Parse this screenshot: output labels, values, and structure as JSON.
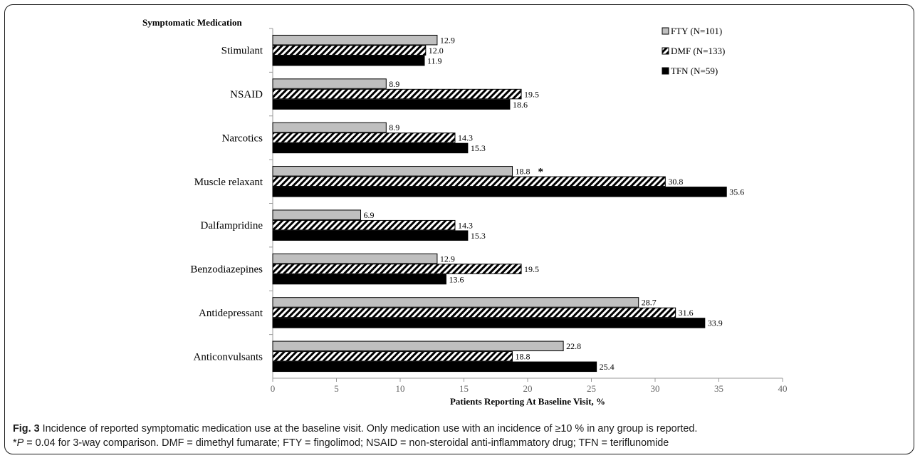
{
  "chart_data": {
    "type": "bar",
    "orientation": "horizontal",
    "title": "Symptomatic Medication",
    "xlabel": "Patients Reporting At Baseline Visit, %",
    "ylabel": "",
    "xlim": [
      0,
      40
    ],
    "xticks": [
      "0",
      "5",
      "10",
      "15",
      "20",
      "25",
      "30",
      "35",
      "40"
    ],
    "grid": false,
    "legend_position": "top-right",
    "categories": [
      "Stimulant",
      "NSAID",
      "Narcotics",
      "Muscle relaxant",
      "Dalfampridine",
      "Benzodiazepines",
      "Antidepressant",
      "Anticonvulsants"
    ],
    "series": [
      {
        "name": "FTY (N=101)",
        "color": "#bfbfbf",
        "pattern": "solid-gray",
        "values": [
          12.9,
          8.9,
          8.9,
          18.8,
          6.9,
          12.9,
          28.7,
          22.8
        ],
        "labels": [
          "12.9",
          "8.9",
          "8.9",
          "18.8",
          "6.9",
          "12.9",
          "28.7",
          "22.8"
        ]
      },
      {
        "name": "DMF (N=133)",
        "color": "#000000",
        "pattern": "diagonal-hatch",
        "values": [
          12.0,
          19.5,
          14.3,
          30.8,
          14.3,
          19.5,
          31.6,
          18.8
        ],
        "labels": [
          "12.0",
          "19.5",
          "14.3",
          "30.8",
          "14.3",
          "19.5",
          "31.6",
          "18.8"
        ]
      },
      {
        "name": "TFN (N=59)",
        "color": "#000000",
        "pattern": "solid-black",
        "values": [
          11.9,
          18.6,
          15.3,
          35.6,
          15.3,
          13.6,
          33.9,
          25.4
        ],
        "labels": [
          "11.9",
          "18.6",
          "15.3",
          "35.6",
          "15.3",
          "13.6",
          "33.9",
          "25.4"
        ]
      }
    ],
    "annotations": [
      {
        "text": "*",
        "category": "Muscle relaxant",
        "series": "FTY (N=101)"
      }
    ]
  },
  "caption": {
    "fig_label": "Fig. 3",
    "line1": " Incidence of reported symptomatic medication use at the baseline visit. Only medication use with an incidence of ≥10 % in any group is reported.",
    "line2_star": "*",
    "line2_p": "P",
    "line2_rest": " = 0.04 for 3-way comparison. DMF = dimethyl fumarate; FTY = fingolimod; NSAID = non-steroidal anti-inflammatory drug; TFN = teriflunomide"
  }
}
